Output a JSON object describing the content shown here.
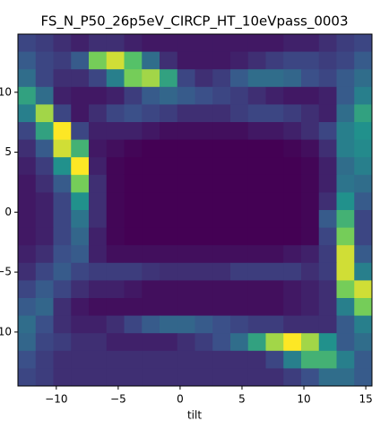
{
  "chart_data": {
    "type": "heatmap",
    "title": "FS_N_P50_26p5eV_CIRCP_HT_10eVpass_0003",
    "xlabel": "tilt",
    "colormap": "viridis",
    "xlim": [
      -13.1,
      15.5
    ],
    "ylim": [
      -14.5,
      14.85
    ],
    "xticks": [
      {
        "value": -10,
        "label": "−10"
      },
      {
        "value": -5,
        "label": "−5"
      },
      0,
      5,
      10,
      15
    ],
    "yticks": [
      10,
      5,
      0,
      {
        "value": -5,
        "label": "−5"
      },
      {
        "value": -10,
        "label": "−10"
      }
    ],
    "values": [
      [
        30,
        28,
        25,
        22,
        25,
        25,
        22,
        20,
        20,
        20,
        20,
        20,
        20,
        20,
        20,
        22,
        22,
        25,
        28,
        30
      ],
      [
        35,
        30,
        28,
        35,
        70,
        80,
        65,
        40,
        25,
        20,
        20,
        20,
        22,
        25,
        28,
        30,
        30,
        28,
        30,
        35
      ],
      [
        40,
        30,
        25,
        25,
        30,
        45,
        70,
        75,
        55,
        30,
        25,
        28,
        35,
        40,
        40,
        38,
        32,
        30,
        35,
        40
      ],
      [
        55,
        40,
        22,
        20,
        20,
        22,
        28,
        35,
        38,
        35,
        32,
        30,
        28,
        25,
        22,
        20,
        20,
        22,
        35,
        45
      ],
      [
        45,
        75,
        30,
        20,
        25,
        30,
        32,
        30,
        28,
        25,
        25,
        25,
        28,
        30,
        30,
        28,
        25,
        22,
        40,
        55
      ],
      [
        30,
        55,
        85,
        30,
        22,
        22,
        22,
        20,
        18,
        18,
        18,
        18,
        18,
        20,
        20,
        22,
        25,
        30,
        45,
        50
      ],
      [
        25,
        35,
        80,
        60,
        20,
        18,
        16,
        15,
        15,
        15,
        15,
        15,
        15,
        15,
        15,
        16,
        18,
        25,
        45,
        48
      ],
      [
        22,
        28,
        50,
        85,
        22,
        16,
        15,
        15,
        15,
        15,
        15,
        15,
        15,
        15,
        15,
        15,
        16,
        22,
        40,
        45
      ],
      [
        20,
        25,
        35,
        70,
        25,
        16,
        15,
        15,
        15,
        15,
        15,
        15,
        15,
        15,
        15,
        15,
        16,
        22,
        42,
        40
      ],
      [
        20,
        22,
        30,
        50,
        25,
        16,
        15,
        15,
        15,
        15,
        15,
        15,
        15,
        15,
        15,
        15,
        16,
        25,
        50,
        35
      ],
      [
        20,
        22,
        30,
        42,
        25,
        16,
        15,
        15,
        15,
        15,
        15,
        15,
        15,
        15,
        15,
        15,
        16,
        35,
        60,
        30
      ],
      [
        20,
        22,
        30,
        38,
        22,
        16,
        15,
        15,
        15,
        15,
        15,
        15,
        15,
        15,
        15,
        15,
        16,
        30,
        70,
        30
      ],
      [
        22,
        25,
        32,
        35,
        22,
        18,
        18,
        18,
        18,
        18,
        18,
        18,
        18,
        18,
        18,
        20,
        22,
        28,
        80,
        35
      ],
      [
        25,
        30,
        35,
        30,
        28,
        28,
        28,
        26,
        25,
        25,
        25,
        25,
        28,
        28,
        28,
        28,
        25,
        28,
        80,
        45
      ],
      [
        30,
        35,
        30,
        25,
        22,
        22,
        20,
        18,
        18,
        18,
        18,
        18,
        18,
        18,
        18,
        20,
        22,
        25,
        70,
        80
      ],
      [
        35,
        38,
        25,
        20,
        18,
        18,
        18,
        18,
        18,
        18,
        18,
        18,
        18,
        18,
        18,
        20,
        22,
        25,
        45,
        70
      ],
      [
        40,
        32,
        25,
        22,
        22,
        25,
        30,
        35,
        38,
        38,
        35,
        32,
        30,
        28,
        28,
        25,
        25,
        25,
        35,
        45
      ],
      [
        38,
        30,
        28,
        25,
        25,
        22,
        22,
        22,
        22,
        25,
        28,
        32,
        40,
        55,
        75,
        85,
        75,
        50,
        35,
        40
      ],
      [
        32,
        28,
        25,
        25,
        25,
        25,
        25,
        25,
        25,
        25,
        25,
        25,
        25,
        25,
        30,
        45,
        60,
        60,
        45,
        35
      ],
      [
        30,
        28,
        25,
        25,
        25,
        25,
        25,
        25,
        25,
        25,
        25,
        25,
        25,
        25,
        25,
        28,
        32,
        40,
        40,
        35
      ]
    ]
  }
}
